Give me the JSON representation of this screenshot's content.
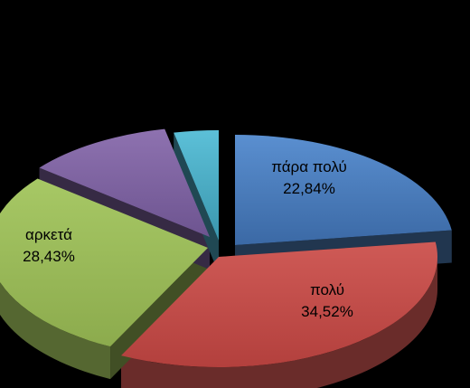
{
  "chart_data": {
    "type": "pie",
    "style": "3d-exploded",
    "title": "",
    "categories": [
      "πάρα πολύ",
      "πολύ",
      "αρκετά",
      "",
      ""
    ],
    "values": [
      22.84,
      34.52,
      28.43,
      10.91,
      3.3
    ],
    "labels": [
      {
        "name": "πάρα πολύ",
        "value": "22,84%"
      },
      {
        "name": "πολύ",
        "value": "34,52%"
      },
      {
        "name": "αρκετά",
        "value": "28,43%"
      }
    ],
    "colors": [
      "#4F81BD",
      "#C0504D",
      "#9BBB59",
      "#8064A2",
      "#4BACC6"
    ],
    "background": "#000000",
    "legend": "none"
  }
}
